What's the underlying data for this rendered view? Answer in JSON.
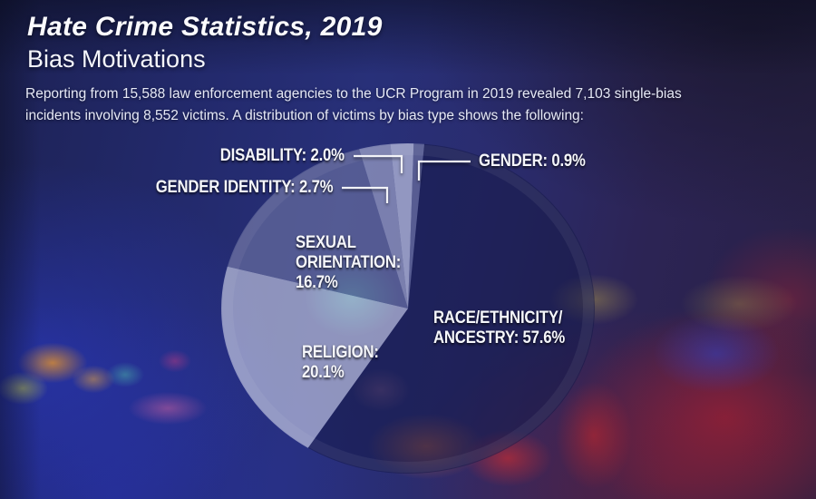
{
  "header": {
    "title": "Hate Crime Statistics, 2019",
    "subtitle": "Bias Motivations",
    "description_line1": "Reporting from 15,588 law enforcement agencies to the UCR Program in 2019 revealed 7,103 single-bias",
    "description_line2": "incidents involving 8,552 victims. A distribution of victims by bias type shows the following:"
  },
  "chart_data": {
    "type": "pie",
    "title": "Distribution of victims by bias type",
    "unit": "percent",
    "order": "clockwise-from-top",
    "start_angle_deg": 5,
    "slices": [
      {
        "id": "race-ethnicity-ancestry",
        "label": "Race/Ethnicity/Ancestry",
        "value": 57.6,
        "color": "rgba(22,26,72,0.55)",
        "display_lines": [
          "RACE/ETHNICITY/",
          "ANCESTRY: 57.6%"
        ]
      },
      {
        "id": "religion",
        "label": "Religion",
        "value": 20.1,
        "color": "rgba(228,232,248,0.55)",
        "display_lines": [
          "RELIGION:",
          "20.1%"
        ]
      },
      {
        "id": "sexual-orientation",
        "label": "Sexual Orientation",
        "value": 16.7,
        "color": "rgba(112,118,164,0.62)",
        "display_lines": [
          "SEXUAL",
          "ORIENTATION:",
          "16.7%"
        ]
      },
      {
        "id": "gender-identity",
        "label": "Gender Identity",
        "value": 2.7,
        "color": "rgba(176,181,214,0.60)",
        "display_lines": [
          "GENDER IDENTITY: 2.7%"
        ]
      },
      {
        "id": "disability",
        "label": "Disability",
        "value": 2.0,
        "color": "rgba(212,216,240,0.62)",
        "display_lines": [
          "DISABILITY: 2.0%"
        ]
      },
      {
        "id": "gender",
        "label": "Gender",
        "value": 0.9,
        "color": "rgba(126,131,172,0.55)",
        "display_lines": [
          "GENDER: 0.9%"
        ]
      }
    ]
  }
}
